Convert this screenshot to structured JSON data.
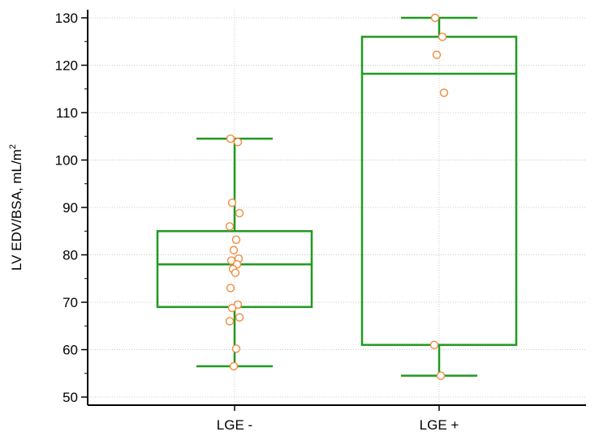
{
  "chart_data": {
    "type": "box",
    "ylabel": "LV EDV/BSA, mL/m",
    "ylabel_sup": "2",
    "ylim": [
      50,
      130
    ],
    "yticks": [
      50,
      60,
      70,
      80,
      90,
      100,
      110,
      120,
      130
    ],
    "grid": true,
    "categories": [
      "LGE -",
      "LGE +"
    ],
    "box_color": "#1f9a1f",
    "point_color": "#f08c3c",
    "boxes": [
      {
        "name": "LGE -",
        "whisker_low": 56.5,
        "q1": 69,
        "median": 78,
        "q3": 85,
        "whisker_high": 104.5,
        "points": [
          104.5,
          103.8,
          91,
          88.8,
          86,
          83.2,
          81,
          79.2,
          78.8,
          78,
          77,
          76.2,
          73,
          69.5,
          68.8,
          66.8,
          66,
          60.2,
          56.5
        ]
      },
      {
        "name": "LGE +",
        "whisker_low": 54.5,
        "q1": 61,
        "median": 118.2,
        "q3": 126,
        "whisker_high": 130,
        "points": [
          130,
          126,
          122.2,
          114.2,
          61,
          54.5
        ]
      }
    ]
  }
}
